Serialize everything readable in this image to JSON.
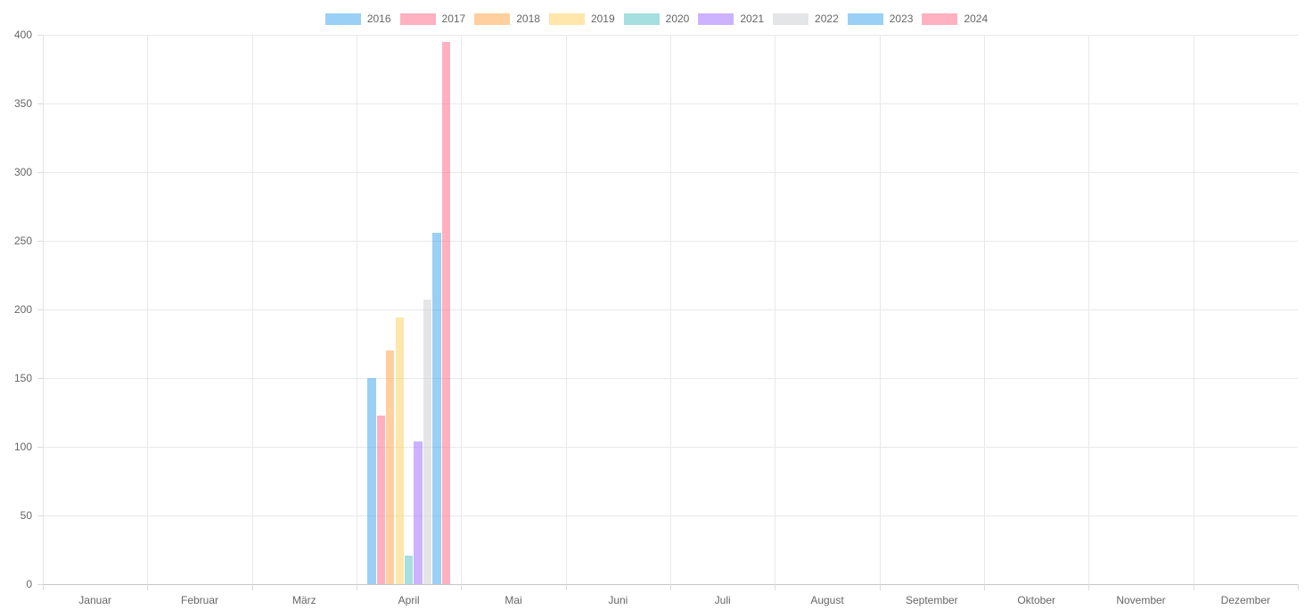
{
  "chart_data": {
    "type": "bar",
    "title": "",
    "xlabel": "",
    "ylabel": "",
    "categories": [
      "Januar",
      "Februar",
      "März",
      "April",
      "Mai",
      "Juni",
      "Juli",
      "August",
      "September",
      "Oktober",
      "November",
      "Dezember"
    ],
    "series": [
      {
        "name": "2016",
        "color": "rgba(54, 162, 235, 0.5)",
        "values": [
          null,
          null,
          null,
          150,
          null,
          null,
          null,
          null,
          null,
          null,
          null,
          null
        ]
      },
      {
        "name": "2017",
        "color": "rgba(255, 99, 132, 0.5)",
        "values": [
          null,
          null,
          null,
          123,
          null,
          null,
          null,
          null,
          null,
          null,
          null,
          null
        ]
      },
      {
        "name": "2018",
        "color": "rgba(255, 159, 64, 0.5)",
        "values": [
          null,
          null,
          null,
          170,
          null,
          null,
          null,
          null,
          null,
          null,
          null,
          null
        ]
      },
      {
        "name": "2019",
        "color": "rgba(255, 205, 86, 0.5)",
        "values": [
          null,
          null,
          null,
          194,
          null,
          null,
          null,
          null,
          null,
          null,
          null,
          null
        ]
      },
      {
        "name": "2020",
        "color": "rgba(75, 192, 192, 0.5)",
        "values": [
          null,
          null,
          null,
          21,
          null,
          null,
          null,
          null,
          null,
          null,
          null,
          null
        ]
      },
      {
        "name": "2021",
        "color": "rgba(153, 102, 255, 0.5)",
        "values": [
          null,
          null,
          null,
          104,
          null,
          null,
          null,
          null,
          null,
          null,
          null,
          null
        ]
      },
      {
        "name": "2022",
        "color": "rgba(201, 203, 207, 0.5)",
        "values": [
          null,
          null,
          null,
          207,
          null,
          null,
          null,
          null,
          null,
          null,
          null,
          null
        ]
      },
      {
        "name": "2023",
        "color": "rgba(54, 162, 235, 0.5)",
        "values": [
          null,
          null,
          null,
          256,
          null,
          null,
          null,
          null,
          null,
          null,
          null,
          null
        ]
      },
      {
        "name": "2024",
        "color": "rgba(255, 99, 132, 0.5)",
        "values": [
          null,
          null,
          null,
          395,
          null,
          null,
          null,
          null,
          null,
          null,
          null,
          null
        ]
      }
    ],
    "ylim": [
      0,
      400
    ],
    "ytick_step": 50,
    "ytick_labels": [
      "0",
      "50",
      "100",
      "150",
      "200",
      "250",
      "300",
      "350",
      "400"
    ],
    "grid": true,
    "legend_position": "top"
  },
  "colors": {
    "background": "#ffffff",
    "gridline": "#e9e9e9",
    "axis_border_left": "#e3e3e3",
    "axis_border_bottom": "#c6c6c6",
    "tick_mark": "#dcdcdc",
    "tick_label": "#666666",
    "legend_label": "#666666"
  }
}
